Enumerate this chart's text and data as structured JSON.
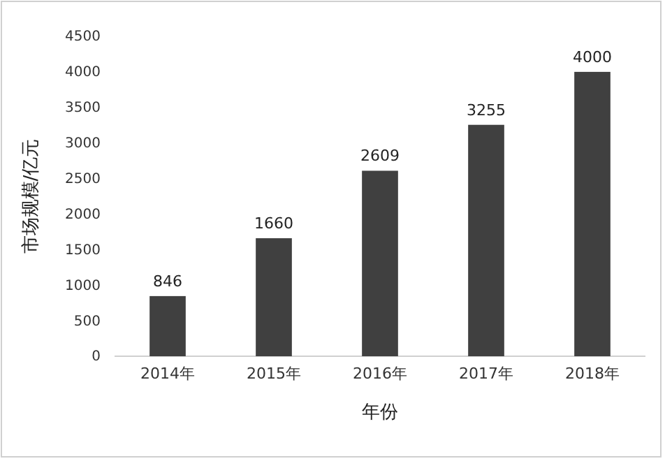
{
  "chart_data": {
    "type": "bar",
    "xlabel": "年份",
    "ylabel": "市场规模/亿元",
    "categories": [
      "2014年",
      "2015年",
      "2016年",
      "2017年",
      "2018年"
    ],
    "values": [
      846,
      1660,
      2609,
      3255,
      4000
    ],
    "color": "#404040",
    "ylim": [
      0,
      4500
    ],
    "yticks": [
      0,
      500,
      1000,
      1500,
      2000,
      2500,
      3000,
      3500,
      4000,
      4500
    ],
    "data_labels": true
  }
}
